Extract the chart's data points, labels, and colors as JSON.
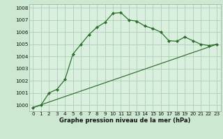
{
  "title": "Graphe pression niveau de la mer (hPa)",
  "background_color": "#cde8d0",
  "plot_bg_color": "#daf0de",
  "grid_color": "#b0ccb8",
  "line_color": "#2a6e2a",
  "xlim": [
    -0.5,
    23.5
  ],
  "ylim": [
    999.5,
    1008.3
  ],
  "yticks": [
    1000,
    1001,
    1002,
    1003,
    1004,
    1005,
    1006,
    1007,
    1008
  ],
  "xticks": [
    0,
    1,
    2,
    3,
    4,
    5,
    6,
    7,
    8,
    9,
    10,
    11,
    12,
    13,
    14,
    15,
    16,
    17,
    18,
    19,
    20,
    21,
    22,
    23
  ],
  "series1_x": [
    0,
    1,
    2,
    3,
    4,
    5,
    6,
    7,
    8,
    9,
    10,
    11,
    12,
    13,
    14,
    15,
    16,
    17,
    18,
    19,
    20,
    21,
    22,
    23
  ],
  "series1_y": [
    999.8,
    1000.0,
    1001.0,
    1001.3,
    1002.1,
    1004.2,
    1005.0,
    1005.8,
    1006.4,
    1006.8,
    1007.55,
    1007.6,
    1007.0,
    1006.9,
    1006.5,
    1006.3,
    1006.0,
    1005.3,
    1005.25,
    1005.6,
    1005.3,
    1005.0,
    1004.9,
    1005.0
  ],
  "series2_x": [
    0,
    23
  ],
  "series2_y": [
    999.8,
    1005.0
  ],
  "xlabel_fontsize": 6.0,
  "tick_fontsize": 5.2
}
